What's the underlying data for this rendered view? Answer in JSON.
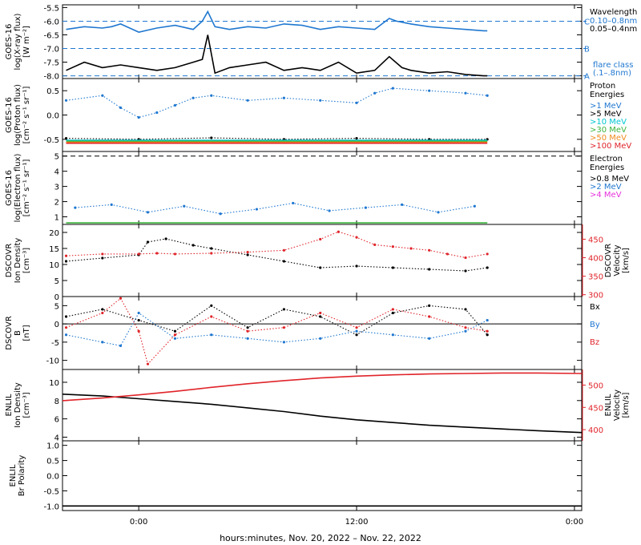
{
  "title": "",
  "footer": "hours:minutes, Nov. 20, 2022 – Nov. 22, 2022",
  "x_ticks": [
    "0:00",
    "12:00",
    "0:00"
  ],
  "x_tick_hours": [
    0,
    12,
    24
  ],
  "x_range_hours": [
    -4.2,
    24.4
  ],
  "colors": {
    "blue": "#1f77d0",
    "black": "#000000",
    "red": "#e0242a",
    "cyan": "#00c8d2",
    "green": "#3cb43c",
    "orange": "#f08c1e",
    "magenta": "#e632dc"
  },
  "chart_data": [
    {
      "type": "line",
      "panel": "xray",
      "ylabel": [
        "GOES-16",
        "log(X-ray flux)",
        "[W m⁻²]"
      ],
      "ylim": [
        -8.1,
        -5.4
      ],
      "y_ticks": [
        -8.0,
        -7.5,
        -7.0,
        -6.5,
        -6.0,
        -5.5
      ],
      "y_tick_labels": [
        "-8.0",
        "-7.5",
        "-7.0",
        "-6.5",
        "-6.0",
        "-5.5"
      ],
      "flare_levels": [
        {
          "letter": "C",
          "value": -6.0
        },
        {
          "letter": "B",
          "value": -7.0
        },
        {
          "letter": "A",
          "value": -8.0
        }
      ],
      "legend_title": "Wavelength",
      "legend": [
        {
          "text": "0.10–0.8nm",
          "color": "blue"
        },
        {
          "text": "0.05–0.4nm",
          "color": "black"
        }
      ],
      "legend_footer": [
        "flare class",
        "(.1–.8nm)"
      ],
      "series": [
        {
          "name": "0.10–0.8nm",
          "color": "blue",
          "x": [
            -4.0,
            -3.0,
            -2.0,
            -1.5,
            -1.0,
            0.0,
            1.0,
            2.0,
            3.0,
            3.5,
            3.8,
            4.2,
            5.0,
            6.0,
            7.0,
            8.0,
            9.0,
            10.0,
            11.0,
            12.0,
            13.0,
            13.8,
            14.2,
            15.0,
            16.0,
            17.0,
            18.0,
            19.0,
            19.2
          ],
          "y": [
            -6.3,
            -6.2,
            -6.25,
            -6.2,
            -6.1,
            -6.4,
            -6.25,
            -6.15,
            -6.3,
            -6.0,
            -5.65,
            -6.2,
            -6.3,
            -6.2,
            -6.25,
            -6.1,
            -6.15,
            -6.3,
            -6.2,
            -6.25,
            -6.3,
            -5.9,
            -6.0,
            -6.1,
            -6.2,
            -6.25,
            -6.3,
            -6.35,
            -6.35
          ]
        },
        {
          "name": "0.05–0.4nm",
          "color": "black",
          "x": [
            -4.0,
            -3.0,
            -2.0,
            -1.0,
            0.0,
            1.0,
            2.0,
            3.0,
            3.5,
            3.8,
            4.2,
            5.0,
            6.0,
            7.0,
            8.0,
            9.0,
            10.0,
            11.0,
            12.0,
            13.0,
            13.8,
            14.5,
            15.0,
            16.0,
            17.0,
            18.0,
            19.0,
            19.2
          ],
          "y": [
            -7.8,
            -7.5,
            -7.7,
            -7.6,
            -7.7,
            -7.8,
            -7.7,
            -7.5,
            -7.4,
            -6.5,
            -7.9,
            -7.7,
            -7.6,
            -7.5,
            -7.8,
            -7.7,
            -7.8,
            -7.5,
            -7.9,
            -7.8,
            -7.3,
            -7.7,
            -7.8,
            -7.9,
            -7.85,
            -7.95,
            -8.0,
            -8.0
          ]
        }
      ]
    },
    {
      "type": "scatter",
      "panel": "proton",
      "ylabel": [
        "GOES-16",
        "log(Proton flux)",
        "[cm⁻² s⁻¹ sr⁻¹]"
      ],
      "ylim": [
        -0.75,
        0.75
      ],
      "y_ticks": [
        -0.5,
        0.0,
        0.5
      ],
      "y_tick_labels": [
        "-0.5",
        "0.0",
        "0.5"
      ],
      "legend_title": "Proton",
      "legend_title2": "Energies",
      "legend": [
        {
          "text": ">1 MeV",
          "color": "blue"
        },
        {
          "text": ">5 MeV",
          "color": "black"
        },
        {
          "text": ">10 MeV",
          "color": "cyan"
        },
        {
          "text": ">30 MeV",
          "color": "green"
        },
        {
          "text": ">50 MeV",
          "color": "orange"
        },
        {
          "text": ">100 MeV",
          "color": "red"
        }
      ],
      "series": [
        {
          "name": ">1 MeV",
          "color": "blue",
          "x": [
            -4.0,
            -2.0,
            -1.0,
            0.0,
            1.0,
            2.0,
            3.0,
            4.0,
            6.0,
            8.0,
            10.0,
            12.0,
            13.0,
            14.0,
            16.0,
            18.0,
            19.2
          ],
          "y": [
            0.3,
            0.4,
            0.15,
            -0.05,
            0.05,
            0.2,
            0.35,
            0.4,
            0.3,
            0.35,
            0.3,
            0.25,
            0.45,
            0.55,
            0.5,
            0.45,
            0.4
          ]
        },
        {
          "name": ">5 MeV",
          "color": "black",
          "x": [
            -4.0,
            0.0,
            4.0,
            8.0,
            12.0,
            16.0,
            19.2
          ],
          "y": [
            -0.48,
            -0.5,
            -0.47,
            -0.5,
            -0.48,
            -0.5,
            -0.5
          ]
        },
        {
          "name": ">10 MeV",
          "color": "cyan",
          "x": [
            -4.0,
            19.2
          ],
          "y": [
            -0.52,
            -0.52
          ]
        },
        {
          "name": ">30 MeV",
          "color": "green",
          "x": [
            -4.0,
            19.2
          ],
          "y": [
            -0.54,
            -0.54
          ]
        },
        {
          "name": ">50 MeV",
          "color": "orange",
          "x": [
            -4.0,
            19.2
          ],
          "y": [
            -0.56,
            -0.56
          ]
        },
        {
          "name": ">100 MeV",
          "color": "red",
          "x": [
            -4.0,
            19.2
          ],
          "y": [
            -0.58,
            -0.58
          ]
        }
      ]
    },
    {
      "type": "scatter",
      "panel": "electron",
      "ylabel": [
        "GOES-16",
        "log(Electron flux)",
        "[cm⁻² s⁻¹ sr⁻¹]"
      ],
      "ylim": [
        0.5,
        5.3
      ],
      "y_ticks": [
        1,
        2,
        3,
        4,
        5
      ],
      "y_tick_labels": [
        "1",
        "2",
        "3",
        "4",
        "5"
      ],
      "dashed_level": 5.0,
      "legend_title": "Electron",
      "legend_title2": "Energies",
      "legend": [
        {
          "text": ">0.8 MeV",
          "color": "black"
        },
        {
          "text": ">2 MeV",
          "color": "blue"
        },
        {
          "text": ">4 MeV",
          "color": "magenta"
        }
      ],
      "series": [
        {
          "name": ">2 MeV",
          "color": "blue",
          "x": [
            -3.5,
            -1.5,
            0.5,
            2.5,
            4.5,
            6.5,
            8.5,
            10.5,
            12.5,
            14.5,
            16.5,
            18.5
          ],
          "y": [
            1.6,
            1.8,
            1.3,
            1.7,
            1.2,
            1.5,
            1.9,
            1.4,
            1.6,
            1.8,
            1.3,
            1.7
          ]
        },
        {
          "name": "baseline",
          "color": "green",
          "x": [
            -4.0,
            19.2
          ],
          "y": [
            0.6,
            0.6
          ]
        }
      ]
    },
    {
      "type": "scatter",
      "panel": "dscovr_plasma",
      "ylabel": [
        "DSCOVR",
        "Ion Density",
        "[cm⁻³]"
      ],
      "ylim": [
        0,
        22.5
      ],
      "y_ticks": [
        0,
        5,
        10,
        15,
        20
      ],
      "y_tick_labels": [
        "0",
        "5",
        "10",
        "15",
        "20"
      ],
      "y2label": [
        "DSCOVR",
        "Velocity",
        "[km/s]"
      ],
      "y2lim": [
        295,
        490
      ],
      "y2_ticks": [
        300,
        350,
        400,
        450
      ],
      "y2_tick_labels": [
        "300",
        "350",
        "400",
        "450"
      ],
      "series": [
        {
          "name": "Ion Density",
          "color": "black",
          "axis": "left",
          "x": [
            -4.0,
            -2.0,
            0.0,
            0.5,
            1.5,
            3.0,
            4.0,
            6.0,
            8.0,
            10.0,
            12.0,
            14.0,
            16.0,
            18.0,
            19.2
          ],
          "y": [
            11,
            12,
            13,
            17,
            18,
            16,
            15,
            13,
            11,
            9,
            9.5,
            9,
            8.5,
            8,
            9
          ]
        },
        {
          "name": "Velocity",
          "color": "red",
          "axis": "right",
          "x": [
            -4.0,
            -2.0,
            0.0,
            1.0,
            2.0,
            4.0,
            6.0,
            8.0,
            10.0,
            11.0,
            12.0,
            13.0,
            14.0,
            15.0,
            16.0,
            17.0,
            18.0,
            19.2
          ],
          "y": [
            405,
            410,
            410,
            412,
            410,
            412,
            415,
            420,
            450,
            470,
            455,
            435,
            430,
            425,
            420,
            410,
            400,
            410
          ]
        }
      ]
    },
    {
      "type": "scatter",
      "panel": "dscovr_mag",
      "ylabel": [
        "DSCOVR",
        "B",
        "[nT]"
      ],
      "ylim": [
        -12.5,
        7.5
      ],
      "y_ticks": [
        -10,
        -5,
        0,
        5
      ],
      "y_tick_labels": [
        "-10",
        "-5",
        "0",
        "5"
      ],
      "zero_line": true,
      "legend": [
        {
          "text": "Bx",
          "color": "black"
        },
        {
          "text": "By",
          "color": "blue"
        },
        {
          "text": "Bz",
          "color": "red"
        }
      ],
      "series": [
        {
          "name": "Bx",
          "color": "black",
          "x": [
            -4.0,
            -2.0,
            0.0,
            2.0,
            4.0,
            6.0,
            8.0,
            10.0,
            12.0,
            14.0,
            16.0,
            18.0,
            19.2
          ],
          "y": [
            2,
            4,
            1,
            -2,
            5,
            -1,
            4,
            2,
            -3,
            3,
            5,
            4,
            -3
          ]
        },
        {
          "name": "By",
          "color": "blue",
          "x": [
            -4.0,
            -2.0,
            -1.0,
            0.0,
            2.0,
            4.0,
            6.0,
            8.0,
            10.0,
            12.0,
            14.0,
            16.0,
            18.0,
            19.2
          ],
          "y": [
            -3,
            -5,
            -6,
            3,
            -4,
            -3,
            -4,
            -5,
            -4,
            -2,
            -3,
            -4,
            -2,
            1
          ]
        },
        {
          "name": "Bz",
          "color": "red",
          "x": [
            -4.0,
            -2.0,
            -1.0,
            0.0,
            0.5,
            2.0,
            4.0,
            6.0,
            8.0,
            10.0,
            12.0,
            14.0,
            16.0,
            18.0,
            19.2
          ],
          "y": [
            -1,
            3,
            7,
            -2,
            -11,
            -3,
            2,
            -2,
            -1,
            3,
            -1,
            4,
            2,
            -1,
            -2
          ]
        }
      ]
    },
    {
      "type": "line",
      "panel": "enlil_plasma",
      "ylabel": [
        "ENLIL",
        "Ion Density",
        "[cm⁻³]"
      ],
      "ylim": [
        3.6,
        11.4
      ],
      "y_ticks": [
        4,
        6,
        8,
        10
      ],
      "y_tick_labels": [
        "4",
        "6",
        "8",
        "10"
      ],
      "y2label": [
        "ENLIL",
        "Velocity",
        "[km/s]"
      ],
      "y2lim": [
        375,
        535
      ],
      "y2_ticks": [
        400,
        450,
        500
      ],
      "y2_tick_labels": [
        "400",
        "450",
        "500"
      ],
      "series": [
        {
          "name": "Ion Density",
          "color": "black",
          "axis": "left",
          "x": [
            -4.2,
            -2.0,
            0.0,
            2.0,
            4.0,
            6.0,
            8.0,
            10.0,
            12.0,
            14.0,
            16.0,
            18.0,
            20.0,
            22.0,
            24.4
          ],
          "y": [
            8.7,
            8.5,
            8.2,
            7.9,
            7.6,
            7.2,
            6.8,
            6.3,
            5.9,
            5.6,
            5.3,
            5.1,
            4.9,
            4.7,
            4.5
          ]
        },
        {
          "name": "Velocity",
          "color": "red",
          "axis": "right",
          "x": [
            -4.2,
            -2.0,
            0.0,
            2.0,
            4.0,
            6.0,
            8.0,
            10.0,
            12.0,
            14.0,
            16.0,
            18.0,
            20.0,
            22.0,
            24.4
          ],
          "y": [
            465,
            471,
            478,
            486,
            495,
            503,
            510,
            516,
            520,
            523,
            525,
            526,
            527,
            527,
            526
          ]
        }
      ]
    },
    {
      "type": "line",
      "panel": "enlil_polarity",
      "ylabel": [
        "ENLIL",
        "Br Polarity"
      ],
      "ylim": [
        -1.15,
        1.15
      ],
      "y_ticks": [
        -1.0,
        -0.5,
        0.0,
        0.5,
        1.0
      ],
      "y_tick_labels": [
        "-1.0",
        "-0.5",
        "0.0",
        "0.5",
        "1.0"
      ],
      "series": [
        {
          "name": "Br Polarity",
          "color": "black",
          "x": [
            -4.2,
            24.4
          ],
          "y": [
            -1.0,
            -1.0
          ]
        }
      ]
    }
  ]
}
